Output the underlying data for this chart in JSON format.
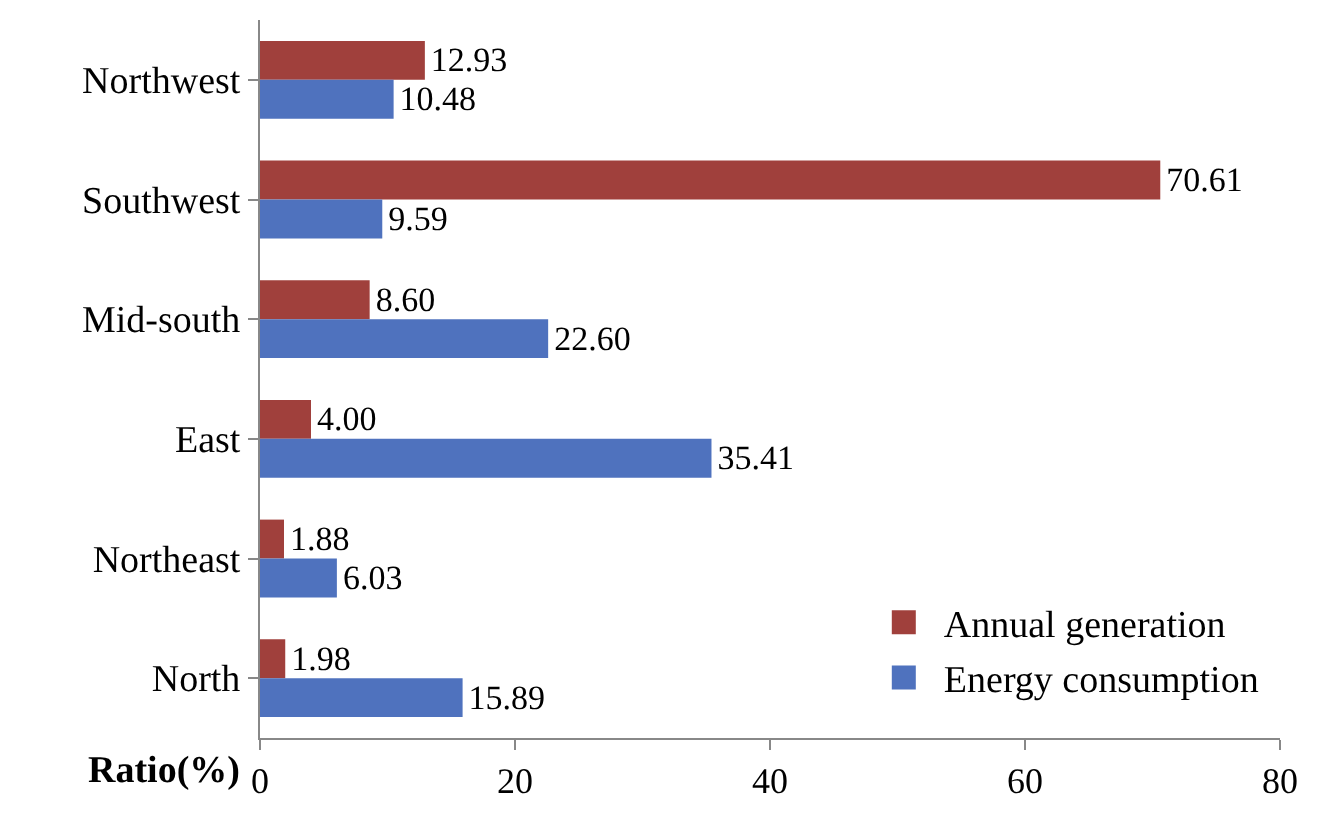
{
  "chart_data": {
    "type": "bar",
    "orientation": "horizontal",
    "xlabel": "Ratio(%)",
    "categories": [
      "Northwest",
      "Southwest",
      "Mid-south",
      "East",
      "Northeast",
      "North"
    ],
    "series": [
      {
        "name": "Annual generation",
        "color": "#a0403c",
        "values": [
          12.93,
          70.61,
          8.6,
          4.0,
          1.88,
          1.98
        ],
        "value_labels": [
          "12.93",
          "70.61",
          "8.60",
          "4.00",
          "1.88",
          "1.98"
        ]
      },
      {
        "name": "Energy consumption",
        "color": "#4f72be",
        "values": [
          10.48,
          9.59,
          22.6,
          35.41,
          6.03,
          15.89
        ],
        "value_labels": [
          "10.48",
          "9.59",
          "22.60",
          "35.41",
          "6.03",
          "15.89"
        ]
      }
    ],
    "xlim": [
      0,
      80
    ],
    "xticks": [
      0,
      20,
      40,
      60,
      80
    ],
    "legend": "bottom right"
  }
}
